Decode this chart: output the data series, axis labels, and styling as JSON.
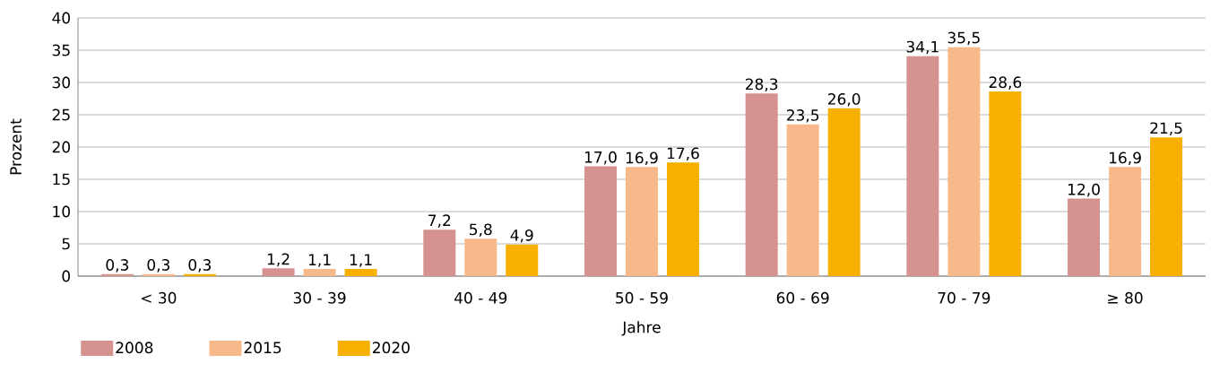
{
  "chart_data": {
    "type": "bar",
    "xlabel": "Jahre",
    "ylabel": "Prozent",
    "categories": [
      "< 30",
      "30 - 39",
      "40 - 49",
      "50 - 59",
      "60 - 69",
      "70 - 79",
      "≥ 80"
    ],
    "series": [
      {
        "name": "2008",
        "color": "#d6928f",
        "values": [
          0.3,
          1.2,
          7.2,
          17.0,
          28.3,
          34.1,
          12.0
        ],
        "value_labels": [
          "0,3",
          "1,2",
          "7,2",
          "17,0",
          "28,3",
          "34,1",
          "12,0"
        ]
      },
      {
        "name": "2015",
        "color": "#f8b98a",
        "values": [
          0.3,
          1.1,
          5.8,
          16.9,
          23.5,
          35.5,
          16.9
        ],
        "value_labels": [
          "0,3",
          "1,1",
          "5,8",
          "16,9",
          "23,5",
          "35,5",
          "16,9"
        ]
      },
      {
        "name": "2020",
        "color": "#f8b000",
        "values": [
          0.3,
          1.1,
          4.9,
          17.6,
          26.0,
          28.6,
          21.5
        ],
        "value_labels": [
          "0,3",
          "1,1",
          "4,9",
          "17,6",
          "26,0",
          "28,6",
          "21,5"
        ]
      }
    ],
    "ylim": [
      0,
      40
    ],
    "yticks": [
      0,
      5,
      10,
      15,
      20,
      25,
      30,
      35,
      40
    ],
    "grid": "y",
    "legend": "bottom left"
  }
}
